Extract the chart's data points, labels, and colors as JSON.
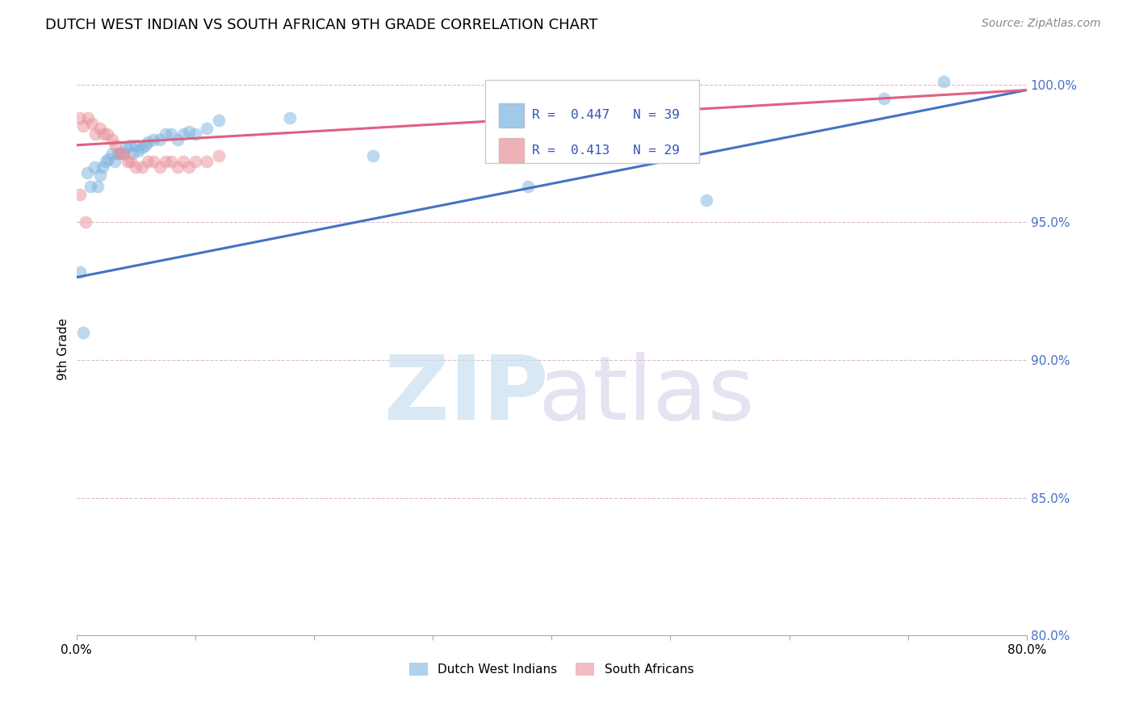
{
  "title": "DUTCH WEST INDIAN VS SOUTH AFRICAN 9TH GRADE CORRELATION CHART",
  "source": "Source: ZipAtlas.com",
  "ylabel": "9th Grade",
  "xmin": 0.0,
  "xmax": 0.8,
  "ymin": 0.8,
  "ymax": 1.008,
  "x_ticks": [
    0.0,
    0.1,
    0.2,
    0.3,
    0.4,
    0.5,
    0.6,
    0.7,
    0.8
  ],
  "x_tick_labels": [
    "0.0%",
    "",
    "",
    "",
    "",
    "",
    "",
    "",
    "80.0%"
  ],
  "y_tick_labels_right": [
    "80.0%",
    "85.0%",
    "90.0%",
    "95.0%",
    "100.0%"
  ],
  "y_ticks_right": [
    0.8,
    0.85,
    0.9,
    0.95,
    1.0
  ],
  "blue_color": "#7ab3e0",
  "pink_color": "#e8909a",
  "blue_line_color": "#4472c4",
  "pink_line_color": "#e06080",
  "legend_R_blue": "0.447",
  "legend_N_blue": "39",
  "legend_R_pink": "0.413",
  "legend_N_pink": "29",
  "blue_scatter_x": [
    0.003,
    0.006,
    0.009,
    0.012,
    0.015,
    0.018,
    0.02,
    0.022,
    0.025,
    0.027,
    0.03,
    0.032,
    0.035,
    0.037,
    0.04,
    0.042,
    0.045,
    0.047,
    0.05,
    0.052,
    0.055,
    0.058,
    0.06,
    0.065,
    0.07,
    0.075,
    0.08,
    0.085,
    0.09,
    0.095,
    0.1,
    0.11,
    0.12,
    0.18,
    0.25,
    0.38,
    0.53,
    0.68,
    0.73
  ],
  "blue_scatter_y": [
    0.932,
    0.91,
    0.968,
    0.963,
    0.97,
    0.963,
    0.967,
    0.97,
    0.972,
    0.973,
    0.975,
    0.972,
    0.975,
    0.975,
    0.975,
    0.977,
    0.978,
    0.975,
    0.978,
    0.976,
    0.977,
    0.978,
    0.979,
    0.98,
    0.98,
    0.982,
    0.982,
    0.98,
    0.982,
    0.983,
    0.982,
    0.984,
    0.987,
    0.988,
    0.974,
    0.963,
    0.958,
    0.995,
    1.001
  ],
  "pink_scatter_x": [
    0.003,
    0.006,
    0.01,
    0.013,
    0.016,
    0.02,
    0.023,
    0.026,
    0.03,
    0.033,
    0.036,
    0.04,
    0.043,
    0.046,
    0.05,
    0.055,
    0.06,
    0.065,
    0.07,
    0.075,
    0.08,
    0.085,
    0.09,
    0.095,
    0.1,
    0.11,
    0.12,
    0.003,
    0.008
  ],
  "pink_scatter_y": [
    0.988,
    0.985,
    0.988,
    0.986,
    0.982,
    0.984,
    0.982,
    0.982,
    0.98,
    0.978,
    0.975,
    0.975,
    0.972,
    0.972,
    0.97,
    0.97,
    0.972,
    0.972,
    0.97,
    0.972,
    0.972,
    0.97,
    0.972,
    0.97,
    0.972,
    0.972,
    0.974,
    0.96,
    0.95
  ],
  "blue_trend_x0": 0.0,
  "blue_trend_x1": 0.8,
  "blue_trend_y0": 0.93,
  "blue_trend_y1": 0.998,
  "pink_trend_x0": 0.0,
  "pink_trend_x1": 0.8,
  "pink_trend_y0": 0.978,
  "pink_trend_y1": 0.998,
  "legend_entries": [
    "Dutch West Indians",
    "South Africans"
  ]
}
